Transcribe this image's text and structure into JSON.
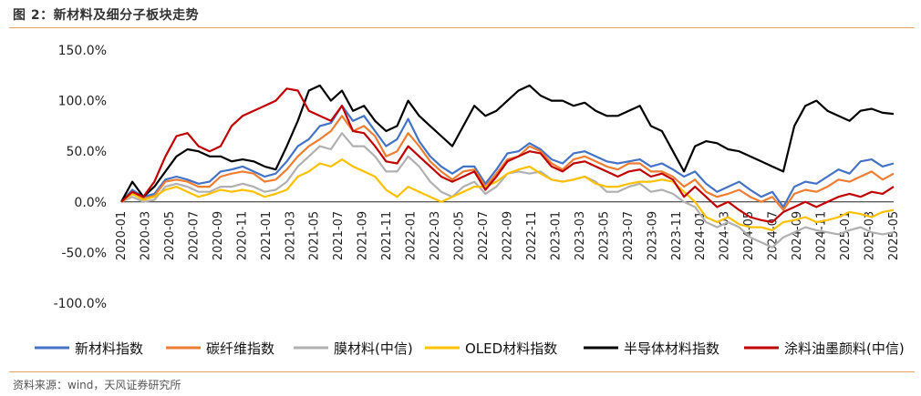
{
  "header": {
    "title": "图 2：新材料及细分子板块走势"
  },
  "footer": {
    "source": "资料来源：wind，天风证券研究所"
  },
  "chart_data": {
    "type": "line",
    "title": "",
    "xlabel": "",
    "ylabel": "",
    "ylim": [
      -100,
      150
    ],
    "y_ticks": [
      "150.0%",
      "100.0%",
      "50.0%",
      "0.0%",
      "-50.0%",
      "-100.0%"
    ],
    "x_ticks": [
      "2020-01",
      "2020-03",
      "2020-05",
      "2020-07",
      "2020-09",
      "2020-11",
      "2021-01",
      "2021-03",
      "2021-05",
      "2021-07",
      "2021-09",
      "2021-11",
      "2022-01",
      "2022-03",
      "2022-05",
      "2022-07",
      "2022-09",
      "2022-11",
      "2023-01",
      "2023-03",
      "2023-05",
      "2023-07",
      "2023-09",
      "2023-11",
      "2024-01",
      "2024-03",
      "2024-05",
      "2024-07",
      "2024-09",
      "2024-11",
      "2025-01",
      "2025-03",
      "2025-05"
    ],
    "grid": false,
    "legend_position": "bottom",
    "series": [
      {
        "name": "新材料指数",
        "color": "#4472c4",
        "values": [
          0,
          12,
          5,
          8,
          22,
          25,
          22,
          18,
          20,
          30,
          32,
          35,
          30,
          25,
          28,
          40,
          55,
          62,
          75,
          78,
          95,
          80,
          85,
          70,
          55,
          62,
          82,
          60,
          45,
          35,
          28,
          35,
          35,
          18,
          32,
          48,
          50,
          58,
          52,
          42,
          38,
          48,
          50,
          45,
          40,
          38,
          40,
          42,
          35,
          38,
          32,
          25,
          30,
          18,
          10,
          15,
          20,
          12,
          5,
          10,
          -5,
          15,
          20,
          18,
          25,
          32,
          28,
          40,
          42,
          35,
          38
        ]
      },
      {
        "name": "碳纤维指数",
        "color": "#ed7d31",
        "values": [
          0,
          10,
          3,
          6,
          20,
          22,
          20,
          15,
          15,
          25,
          28,
          30,
          28,
          20,
          22,
          32,
          45,
          55,
          62,
          70,
          85,
          70,
          75,
          65,
          45,
          50,
          68,
          55,
          40,
          30,
          22,
          30,
          32,
          15,
          28,
          42,
          45,
          55,
          50,
          38,
          32,
          42,
          45,
          40,
          35,
          32,
          38,
          38,
          30,
          30,
          25,
          15,
          22,
          10,
          5,
          8,
          12,
          5,
          0,
          5,
          -8,
          8,
          12,
          10,
          15,
          22,
          20,
          25,
          30,
          22,
          28
        ]
      },
      {
        "name": "膜材料(中信)",
        "color": "#b0b0b0",
        "values": [
          0,
          5,
          0,
          2,
          15,
          18,
          15,
          10,
          10,
          15,
          15,
          18,
          15,
          10,
          12,
          20,
          35,
          45,
          55,
          52,
          68,
          55,
          55,
          45,
          30,
          30,
          45,
          35,
          20,
          10,
          5,
          15,
          20,
          8,
          15,
          28,
          30,
          28,
          30,
          22,
          20,
          22,
          25,
          20,
          10,
          10,
          15,
          18,
          10,
          12,
          8,
          0,
          -5,
          -20,
          -25,
          -20,
          -25,
          -35,
          -40,
          -45,
          -35,
          -30,
          -25,
          -28,
          -30,
          -32,
          -28,
          -25,
          -30,
          -32,
          -30
        ]
      },
      {
        "name": "OLED材料指数",
        "color": "#ffc000",
        "values": [
          0,
          8,
          2,
          5,
          12,
          15,
          10,
          5,
          8,
          12,
          10,
          12,
          10,
          5,
          8,
          12,
          25,
          30,
          38,
          35,
          42,
          35,
          30,
          25,
          12,
          5,
          15,
          10,
          5,
          0,
          5,
          10,
          15,
          15,
          20,
          28,
          32,
          35,
          28,
          22,
          20,
          22,
          25,
          18,
          15,
          15,
          18,
          20,
          20,
          22,
          20,
          10,
          0,
          -15,
          -20,
          -15,
          -22,
          -25,
          -25,
          -28,
          -20,
          -18,
          -15,
          -20,
          -18,
          -15,
          -10,
          -12,
          -15,
          -10,
          -8
        ]
      },
      {
        "name": "半导体材料指数",
        "color": "#000000",
        "values": [
          0,
          20,
          5,
          15,
          30,
          45,
          52,
          50,
          45,
          45,
          40,
          42,
          40,
          35,
          32,
          55,
          80,
          110,
          115,
          100,
          110,
          90,
          95,
          80,
          70,
          75,
          100,
          85,
          75,
          65,
          55,
          75,
          95,
          85,
          90,
          100,
          110,
          115,
          105,
          100,
          100,
          95,
          98,
          90,
          85,
          85,
          90,
          95,
          75,
          70,
          50,
          30,
          55,
          60,
          58,
          52,
          50,
          45,
          40,
          35,
          30,
          75,
          95,
          100,
          90,
          85,
          80,
          90,
          92,
          88,
          87
        ]
      },
      {
        "name": "涂料油墨颜料(中信)",
        "color": "#c00000",
        "values": [
          0,
          10,
          5,
          20,
          45,
          65,
          68,
          55,
          50,
          55,
          75,
          85,
          90,
          95,
          100,
          112,
          110,
          90,
          85,
          80,
          95,
          70,
          68,
          55,
          40,
          38,
          55,
          45,
          35,
          25,
          20,
          25,
          30,
          12,
          25,
          40,
          45,
          50,
          48,
          35,
          30,
          38,
          40,
          35,
          30,
          25,
          30,
          32,
          25,
          28,
          22,
          5,
          15,
          5,
          -5,
          0,
          -8,
          -15,
          -18,
          -20,
          -10,
          -5,
          0,
          -5,
          0,
          5,
          8,
          5,
          10,
          8,
          15
        ]
      }
    ]
  }
}
